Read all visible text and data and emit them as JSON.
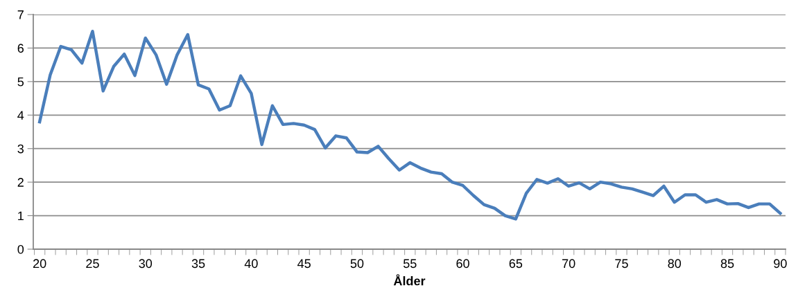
{
  "chart_data": {
    "type": "line",
    "xlabel": "Ålder",
    "categories": [
      "20",
      null,
      null,
      null,
      null,
      "25",
      null,
      null,
      null,
      null,
      "30",
      null,
      null,
      null,
      null,
      "35",
      null,
      null,
      null,
      null,
      "40",
      null,
      null,
      null,
      null,
      "45",
      null,
      null,
      null,
      null,
      "50",
      null,
      null,
      null,
      null,
      "55",
      null,
      null,
      null,
      null,
      "60",
      null,
      null,
      null,
      null,
      "65",
      null,
      null,
      null,
      null,
      "70",
      null,
      null,
      null,
      null,
      "75",
      null,
      null,
      null,
      null,
      "80",
      null,
      null,
      null,
      null,
      "85",
      null,
      null,
      null,
      null,
      "90"
    ],
    "series": [
      {
        "color": "#4a7ebb",
        "values": [
          3.8,
          5.2,
          6.05,
          5.95,
          5.55,
          6.5,
          4.72,
          5.45,
          5.82,
          5.18,
          6.3,
          5.8,
          4.92,
          5.8,
          6.4,
          4.9,
          4.78,
          4.15,
          4.28,
          5.17,
          4.65,
          3.12,
          4.28,
          3.72,
          3.75,
          3.7,
          3.57,
          3.02,
          3.38,
          3.32,
          2.9,
          2.88,
          3.07,
          2.7,
          2.36,
          2.58,
          2.42,
          2.3,
          2.25,
          2.0,
          1.9,
          1.6,
          1.33,
          1.22,
          1.0,
          0.9,
          1.67,
          2.08,
          1.97,
          2.1,
          1.88,
          1.98,
          1.8,
          2.0,
          1.95,
          1.85,
          1.8,
          1.7,
          1.6,
          1.88,
          1.4,
          1.62,
          1.62,
          1.4,
          1.48,
          1.35,
          1.36,
          1.24,
          1.35,
          1.35,
          1.07
        ]
      }
    ],
    "ylim": [
      0,
      7
    ],
    "yticks": [
      0,
      1,
      2,
      3,
      4,
      5,
      6,
      7
    ],
    "grid": "y",
    "marker": "none",
    "line_style": "solid"
  }
}
